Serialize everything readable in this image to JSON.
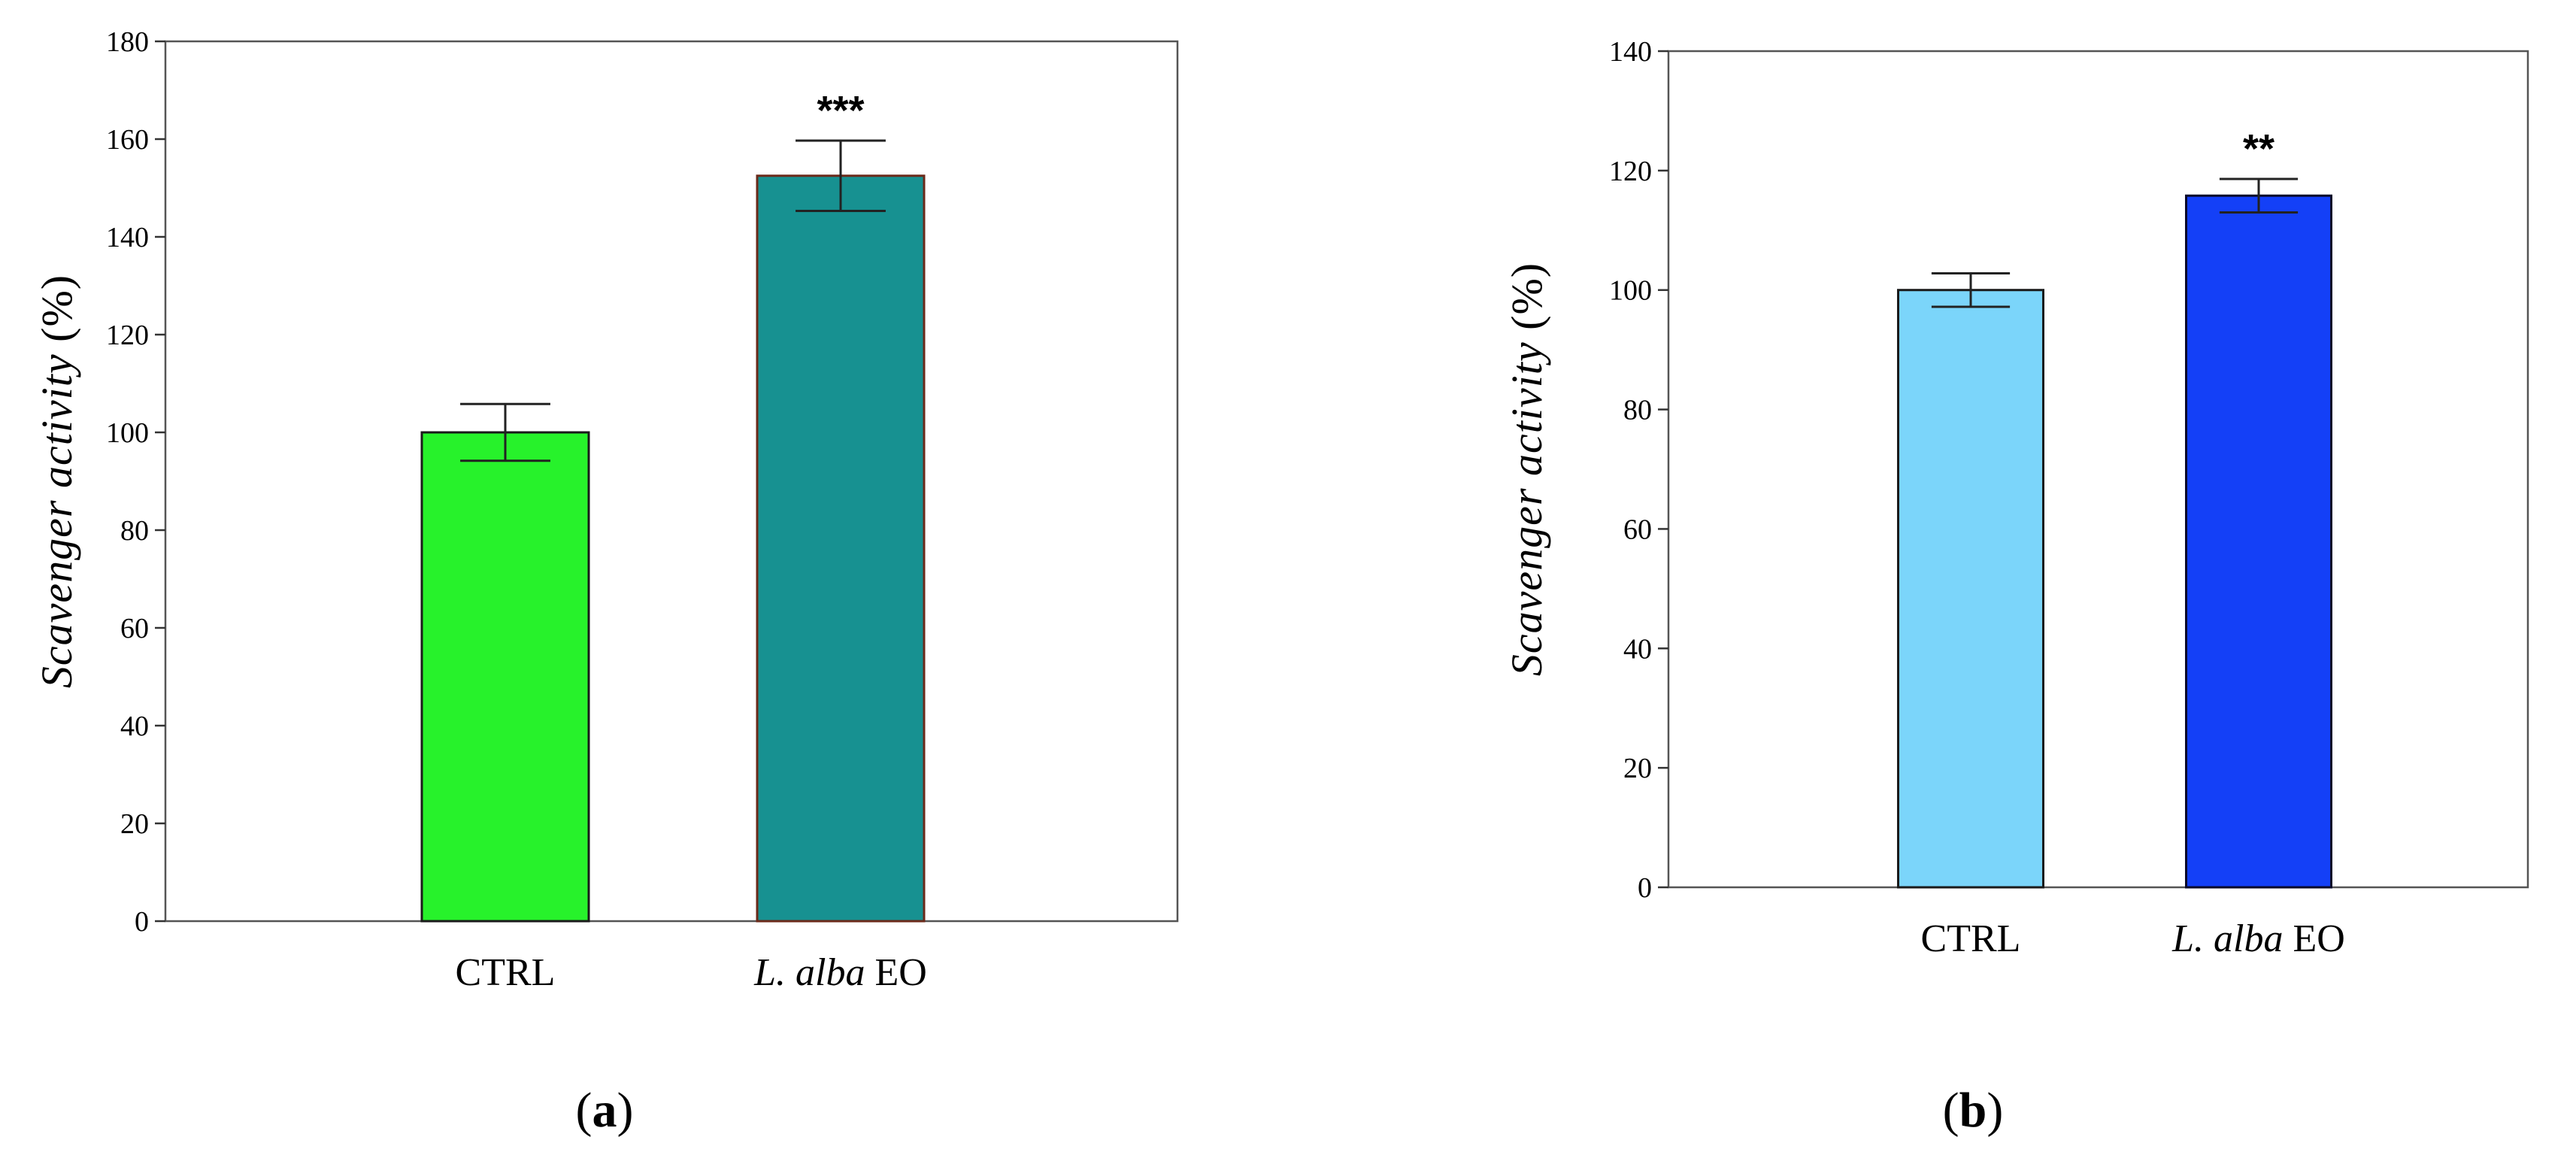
{
  "chart_data": [
    {
      "type": "bar",
      "panel_label": "(a)",
      "ylabel": "Scavenger activity (%)",
      "ylabel_parts": {
        "italic": "Scavenger activity",
        "plain": " (%)"
      },
      "ylim": [
        0,
        180
      ],
      "yticks": [
        0,
        20,
        40,
        60,
        80,
        100,
        120,
        140,
        160,
        180
      ],
      "grid": false,
      "categories": [
        {
          "italic": "",
          "plain": "CTRL"
        },
        {
          "italic": "L. alba",
          "plain": " EO"
        }
      ],
      "values": [
        100,
        152.5
      ],
      "errors": [
        5.8,
        7.2
      ],
      "significance": [
        "",
        "***"
      ],
      "colors": [
        "#27F22B",
        "#179191"
      ],
      "edge_colors": [
        "#1a1a1a",
        "#6b2a1a"
      ]
    },
    {
      "type": "bar",
      "panel_label": "(b)",
      "ylabel": "Scavenger activity (%)",
      "ylabel_parts": {
        "italic": "Scavenger activity",
        "plain": " (%)"
      },
      "ylim": [
        0,
        140
      ],
      "yticks": [
        0,
        20,
        40,
        60,
        80,
        100,
        120,
        140
      ],
      "grid": false,
      "categories": [
        {
          "italic": "",
          "plain": "CTRL"
        },
        {
          "italic": "L. alba",
          "plain": " EO"
        }
      ],
      "values": [
        100,
        115.8
      ],
      "errors": [
        2.8,
        2.8
      ],
      "significance": [
        "",
        "**"
      ],
      "colors": [
        "#7BD5FA",
        "#1440F7"
      ],
      "edge_colors": [
        "#1a1a1a",
        "#0a0a2a"
      ]
    }
  ]
}
